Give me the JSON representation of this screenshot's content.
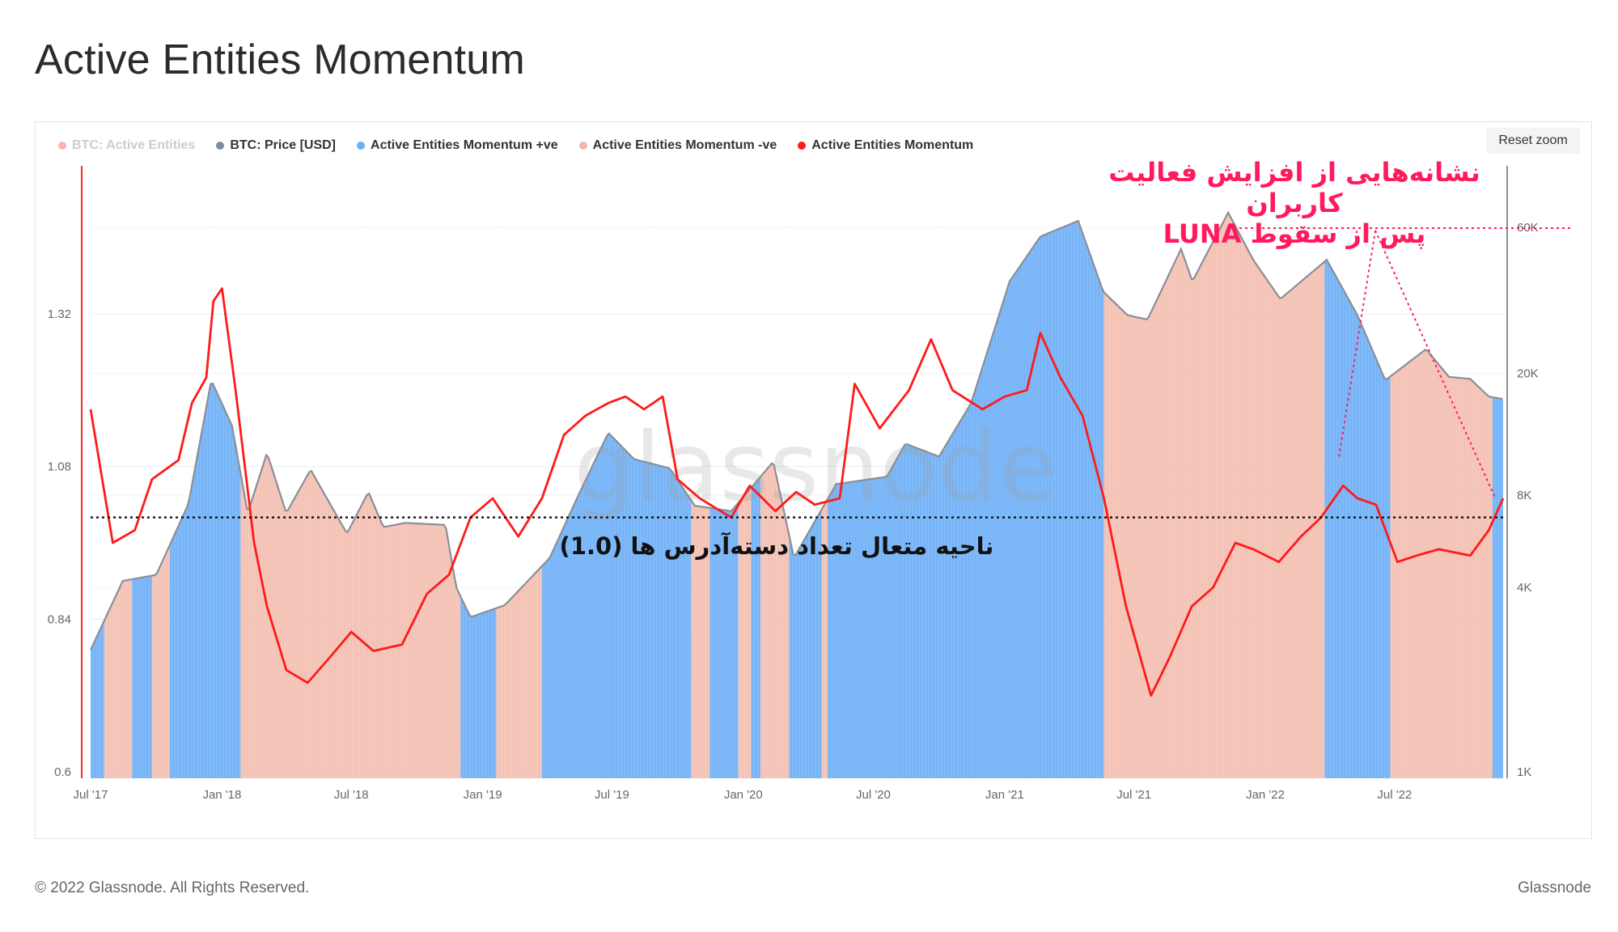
{
  "title": "Active Entities Momentum",
  "toolbar": {
    "reset_zoom": "Reset zoom"
  },
  "legend": [
    {
      "label": "BTC: Active Entities",
      "color": "#f25c5c",
      "hidden": true
    },
    {
      "label": "BTC: Price [USD]",
      "color": "#7f8c99",
      "hidden": false
    },
    {
      "label": "Active Entities Momentum +ve",
      "color": "#6fb0f7",
      "hidden": false
    },
    {
      "label": "Active Entities Momentum -ve",
      "color": "#f2b7a8",
      "hidden": false
    },
    {
      "label": "Active Entities Momentum",
      "color": "#ff1a1a",
      "hidden": false
    }
  ],
  "annotations": {
    "luna_line1": "نشانه‌هایی از افزایش فعالیت کاربران",
    "luna_line2": "پس از سقوط LUNA",
    "equilibrium": "ناحیه متعال تعداد دسته‌آدرس ها (1.0)"
  },
  "watermark": "glassnode",
  "footer": {
    "copyright": "© 2022 Glassnode. All Rights Reserved.",
    "brand": "Glassnode"
  },
  "colors": {
    "positive": "#6fb0f7",
    "negative": "#f2b7a8",
    "momentum": "#ff1a1a",
    "price": "#8a8f96",
    "annotation": "#ff1a5e"
  },
  "chart_data": {
    "type": "line",
    "x_tick_labels": [
      "Jul '17",
      "Jan '18",
      "Jul '18",
      "Jan '19",
      "Jul '19",
      "Jan '20",
      "Jul '20",
      "Jan '21",
      "Jul '21",
      "Jan '22",
      "Jul '22"
    ],
    "left_axis": {
      "ticks": [
        "0.6",
        "0.84",
        "1.08",
        "1.32"
      ],
      "ylim": [
        0.6,
        1.32
      ]
    },
    "right_axis": {
      "scale": "log",
      "ticks": [
        "1K",
        "4K",
        "8K",
        "20K",
        "60K"
      ],
      "ylim": [
        1000,
        60000
      ]
    },
    "reference_line": {
      "y": 1.0,
      "style": "dotted"
    },
    "series": [
      {
        "name": "BTC: Price [USD]",
        "axis": "right",
        "points": [
          [
            "2017-07-01",
            2500
          ],
          [
            "2017-08-15",
            4200
          ],
          [
            "2017-10-01",
            4400
          ],
          [
            "2017-11-15",
            7500
          ],
          [
            "2017-12-17",
            19000
          ],
          [
            "2018-01-15",
            13500
          ],
          [
            "2018-02-06",
            7000
          ],
          [
            "2018-03-05",
            11000
          ],
          [
            "2018-04-01",
            7000
          ],
          [
            "2018-05-05",
            9700
          ],
          [
            "2018-06-25",
            6000
          ],
          [
            "2018-07-25",
            8200
          ],
          [
            "2018-08-15",
            6300
          ],
          [
            "2018-09-15",
            6500
          ],
          [
            "2018-11-10",
            6400
          ],
          [
            "2018-11-25",
            4000
          ],
          [
            "2018-12-15",
            3200
          ],
          [
            "2019-02-01",
            3500
          ],
          [
            "2019-04-05",
            5000
          ],
          [
            "2019-05-15",
            8000
          ],
          [
            "2019-06-26",
            12800
          ],
          [
            "2019-08-01",
            10500
          ],
          [
            "2019-09-20",
            9800
          ],
          [
            "2019-10-25",
            7400
          ],
          [
            "2019-12-15",
            7100
          ],
          [
            "2020-02-12",
            10300
          ],
          [
            "2020-03-12",
            5000
          ],
          [
            "2020-05-10",
            8700
          ],
          [
            "2020-07-20",
            9200
          ],
          [
            "2020-08-15",
            11800
          ],
          [
            "2020-10-01",
            10700
          ],
          [
            "2020-11-15",
            16000
          ],
          [
            "2021-01-08",
            40000
          ],
          [
            "2021-02-20",
            56000
          ],
          [
            "2021-04-14",
            63000
          ],
          [
            "2021-05-19",
            37000
          ],
          [
            "2021-06-22",
            31000
          ],
          [
            "2021-07-20",
            30000
          ],
          [
            "2021-09-05",
            51000
          ],
          [
            "2021-09-21",
            40000
          ],
          [
            "2021-11-10",
            67000
          ],
          [
            "2021-12-15",
            47000
          ],
          [
            "2022-01-22",
            35000
          ],
          [
            "2022-03-28",
            47000
          ],
          [
            "2022-05-10",
            31000
          ],
          [
            "2022-06-18",
            19000
          ],
          [
            "2022-08-14",
            24000
          ],
          [
            "2022-09-15",
            19500
          ],
          [
            "2022-10-15",
            19200
          ],
          [
            "2022-11-10",
            16800
          ],
          [
            "2022-11-30",
            16500
          ]
        ]
      },
      {
        "name": "Active Entities Momentum",
        "axis": "left",
        "points": [
          [
            "2017-07-01",
            1.17
          ],
          [
            "2017-08-01",
            0.96
          ],
          [
            "2017-09-01",
            0.98
          ],
          [
            "2017-09-25",
            1.06
          ],
          [
            "2017-11-01",
            1.09
          ],
          [
            "2017-11-20",
            1.18
          ],
          [
            "2017-12-10",
            1.22
          ],
          [
            "2017-12-20",
            1.34
          ],
          [
            "2018-01-01",
            1.36
          ],
          [
            "2018-01-20",
            1.2
          ],
          [
            "2018-02-15",
            0.96
          ],
          [
            "2018-03-05",
            0.86
          ],
          [
            "2018-04-01",
            0.76
          ],
          [
            "2018-05-01",
            0.74
          ],
          [
            "2018-06-01",
            0.78
          ],
          [
            "2018-07-01",
            0.82
          ],
          [
            "2018-08-01",
            0.79
          ],
          [
            "2018-09-10",
            0.8
          ],
          [
            "2018-10-15",
            0.88
          ],
          [
            "2018-11-15",
            0.91
          ],
          [
            "2018-12-15",
            1.0
          ],
          [
            "2019-01-15",
            1.03
          ],
          [
            "2019-02-20",
            0.97
          ],
          [
            "2019-03-25",
            1.03
          ],
          [
            "2019-04-25",
            1.13
          ],
          [
            "2019-05-25",
            1.16
          ],
          [
            "2019-06-26",
            1.18
          ],
          [
            "2019-07-20",
            1.19
          ],
          [
            "2019-08-15",
            1.17
          ],
          [
            "2019-09-10",
            1.19
          ],
          [
            "2019-10-01",
            1.06
          ],
          [
            "2019-11-01",
            1.03
          ],
          [
            "2019-12-15",
            1.0
          ],
          [
            "2020-01-10",
            1.05
          ],
          [
            "2020-02-15",
            1.01
          ],
          [
            "2020-03-15",
            1.04
          ],
          [
            "2020-04-10",
            1.02
          ],
          [
            "2020-05-15",
            1.03
          ],
          [
            "2020-06-05",
            1.21
          ],
          [
            "2020-07-10",
            1.14
          ],
          [
            "2020-08-20",
            1.2
          ],
          [
            "2020-09-20",
            1.28
          ],
          [
            "2020-10-20",
            1.2
          ],
          [
            "2020-12-01",
            1.17
          ],
          [
            "2021-01-01",
            1.19
          ],
          [
            "2021-02-01",
            1.2
          ],
          [
            "2021-02-20",
            1.29
          ],
          [
            "2021-03-20",
            1.22
          ],
          [
            "2021-04-20",
            1.16
          ],
          [
            "2021-05-20",
            1.03
          ],
          [
            "2021-06-20",
            0.86
          ],
          [
            "2021-07-25",
            0.72
          ],
          [
            "2021-08-20",
            0.78
          ],
          [
            "2021-09-20",
            0.86
          ],
          [
            "2021-10-20",
            0.89
          ],
          [
            "2021-11-20",
            0.96
          ],
          [
            "2021-12-15",
            0.95
          ],
          [
            "2022-01-20",
            0.93
          ],
          [
            "2022-02-20",
            0.97
          ],
          [
            "2022-03-20",
            1.0
          ],
          [
            "2022-04-20",
            1.05
          ],
          [
            "2022-05-10",
            1.03
          ],
          [
            "2022-06-05",
            1.02
          ],
          [
            "2022-07-05",
            0.93
          ],
          [
            "2022-08-01",
            0.94
          ],
          [
            "2022-09-01",
            0.95
          ],
          [
            "2022-10-15",
            0.94
          ],
          [
            "2022-11-10",
            0.98
          ],
          [
            "2022-11-30",
            1.03
          ]
        ]
      }
    ],
    "regime_shading": [
      {
        "from": "2017-07-01",
        "to": "2017-07-20",
        "sign": "+ve"
      },
      {
        "from": "2017-07-20",
        "to": "2017-08-28",
        "sign": "-ve"
      },
      {
        "from": "2017-08-28",
        "to": "2017-09-25",
        "sign": "+ve"
      },
      {
        "from": "2017-09-25",
        "to": "2017-10-20",
        "sign": "-ve"
      },
      {
        "from": "2017-10-20",
        "to": "2018-01-27",
        "sign": "+ve"
      },
      {
        "from": "2018-01-27",
        "to": "2018-12-01",
        "sign": "-ve"
      },
      {
        "from": "2018-12-01",
        "to": "2019-01-20",
        "sign": "+ve"
      },
      {
        "from": "2019-01-20",
        "to": "2019-03-25",
        "sign": "-ve"
      },
      {
        "from": "2019-03-25",
        "to": "2019-10-20",
        "sign": "+ve"
      },
      {
        "from": "2019-10-20",
        "to": "2019-11-15",
        "sign": "-ve"
      },
      {
        "from": "2019-11-15",
        "to": "2019-12-25",
        "sign": "+ve"
      },
      {
        "from": "2019-12-25",
        "to": "2020-01-12",
        "sign": "-ve"
      },
      {
        "from": "2020-01-12",
        "to": "2020-01-25",
        "sign": "+ve"
      },
      {
        "from": "2020-01-25",
        "to": "2020-03-05",
        "sign": "-ve"
      },
      {
        "from": "2020-03-05",
        "to": "2020-04-20",
        "sign": "+ve"
      },
      {
        "from": "2020-04-20",
        "to": "2020-04-28",
        "sign": "-ve"
      },
      {
        "from": "2020-04-28",
        "to": "2021-05-20",
        "sign": "+ve"
      },
      {
        "from": "2021-05-20",
        "to": "2022-03-25",
        "sign": "-ve"
      },
      {
        "from": "2022-03-25",
        "to": "2022-06-25",
        "sign": "+ve"
      },
      {
        "from": "2022-06-25",
        "to": "2022-11-15",
        "sign": "-ve"
      },
      {
        "from": "2022-11-15",
        "to": "2022-11-30",
        "sign": "+ve"
      }
    ]
  }
}
